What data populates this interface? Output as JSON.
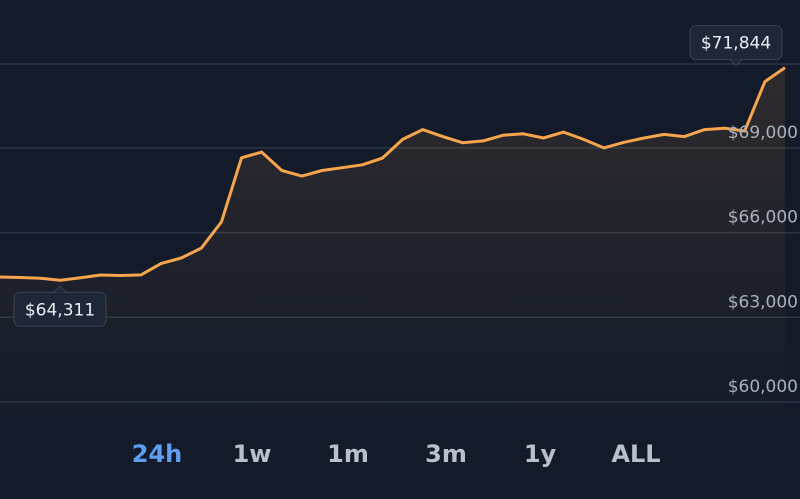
{
  "chart_data": {
    "type": "line",
    "series": [
      {
        "name": null,
        "color": "#f6a54c",
        "values": [
          64427,
          64410,
          64380,
          64311,
          64400,
          64498,
          64480,
          64500,
          64900,
          65100,
          65450,
          66375,
          68650,
          68850,
          68200,
          68000,
          68200,
          68300,
          68400,
          68640,
          69300,
          69650,
          69400,
          69180,
          69250,
          69450,
          69500,
          69350,
          69560,
          69300,
          69000,
          69200,
          69350,
          69480,
          69400,
          69650,
          69700,
          69600,
          71350,
          71844
        ]
      }
    ],
    "ylim": [
      59290,
      74240
    ],
    "yticks": [
      {
        "value": 60000,
        "label": "$60,000"
      },
      {
        "value": 63000,
        "label": "$63,000"
      },
      {
        "value": 66000,
        "label": "$66,000"
      },
      {
        "value": 69000,
        "label": "$69,000"
      }
    ],
    "grid": true,
    "annotations": [
      {
        "value": 71844,
        "label": "$71,844"
      },
      {
        "value": 64311,
        "label": "$64,311"
      }
    ],
    "ranges": [
      "24h",
      "1w",
      "1m",
      "3m",
      "1y",
      "ALL"
    ],
    "active_range": "24h"
  }
}
